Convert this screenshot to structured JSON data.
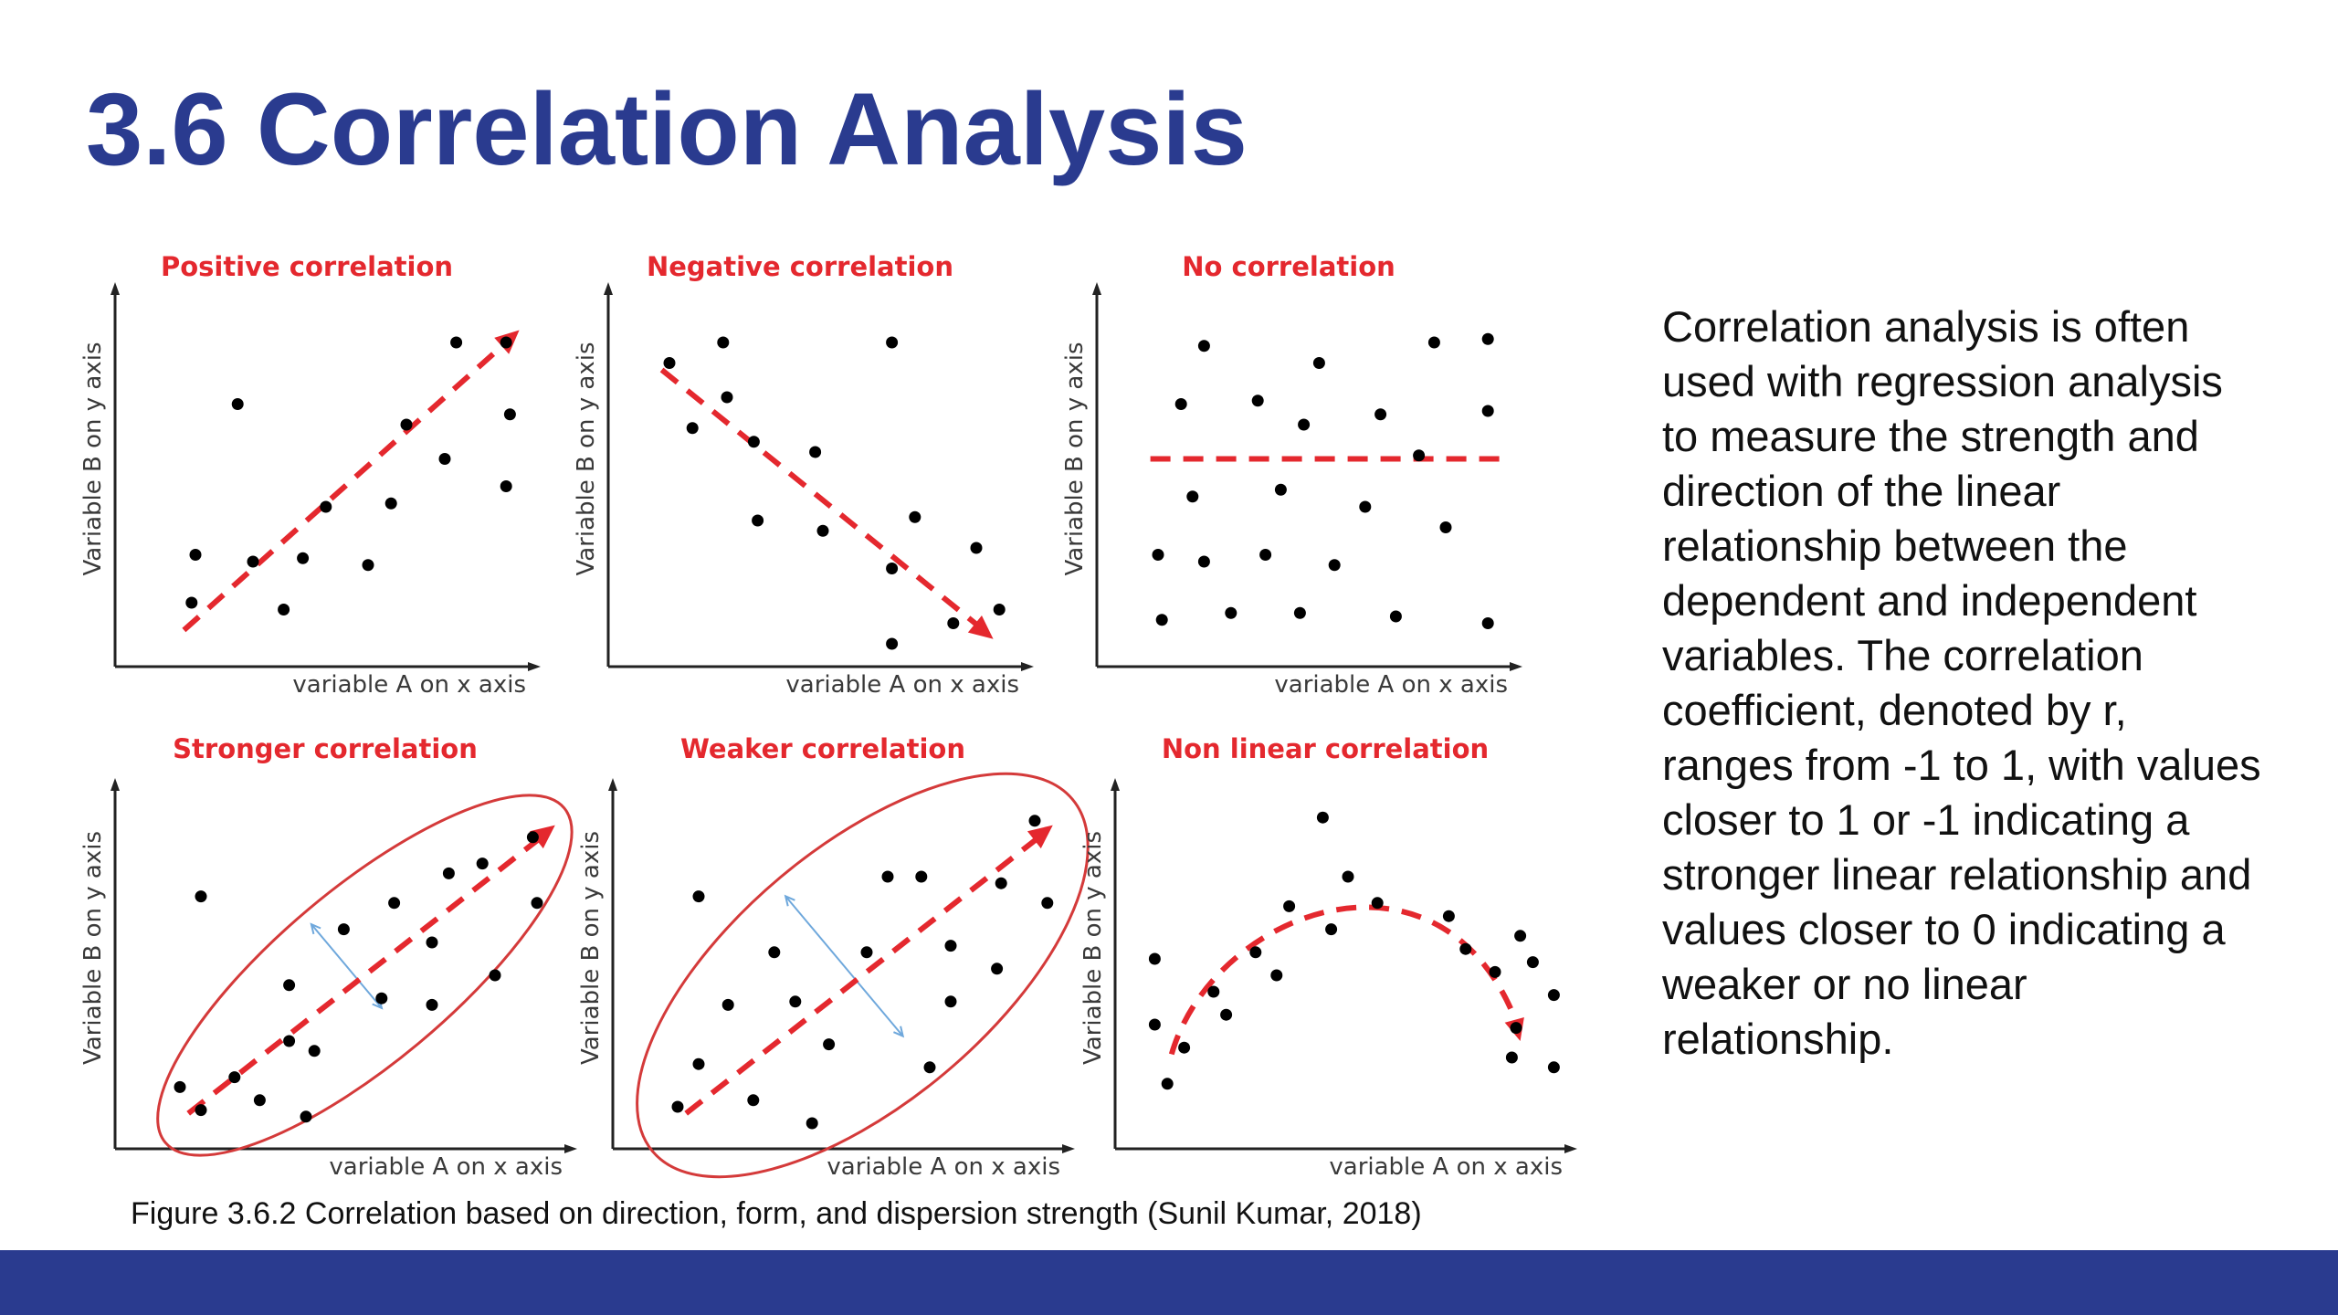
{
  "slide": {
    "title": "3.6 Correlation Analysis",
    "body_text": "Correlation analysis is often used with regression analysis to measure the strength and direction of the linear relationship between the dependent and independent variables. The correlation coefficient, denoted by r, ranges from -1 to 1, with values closer to 1 or -1 indicating a stronger linear relationship and values closer to 0 indicating a weaker or no linear relationship.",
    "caption": "Figure 3.6.2 Correlation based on direction, form, and dispersion strength (Sunil Kumar, 2018)"
  },
  "colors": {
    "title": "#2a3b8f",
    "footer_bar": "#2a3b8f",
    "panel_title": "#e4282e",
    "trend_arrow": "#e4282e",
    "ellipse": "#d43a3a",
    "spread_arrow": "#6fa8dc",
    "points": "#000000",
    "axes": "#222222"
  },
  "figure": {
    "panels": [
      {
        "id": "positive",
        "title": "Positive correlation",
        "xlabel": "variable A on x axis",
        "ylabel": "Variable B on y axis",
        "trend": "increasing dashed arrow",
        "ellipse": false,
        "points": [
          [
            0.14,
            0.84
          ],
          [
            0.26,
            0.26
          ],
          [
            0.15,
            0.7
          ],
          [
            0.3,
            0.72
          ],
          [
            0.38,
            0.86
          ],
          [
            0.43,
            0.71
          ],
          [
            0.49,
            0.56
          ],
          [
            0.6,
            0.73
          ],
          [
            0.66,
            0.55
          ],
          [
            0.7,
            0.32
          ],
          [
            0.8,
            0.42
          ],
          [
            0.83,
            0.08
          ],
          [
            0.96,
            0.08
          ],
          [
            0.97,
            0.29
          ],
          [
            0.96,
            0.5
          ]
        ]
      },
      {
        "id": "negative",
        "title": "Negative correlation",
        "xlabel": "variable A on x axis",
        "ylabel": "Variable B on y axis",
        "trend": "decreasing dashed arrow",
        "ellipse": false,
        "points": [
          [
            0.1,
            0.14
          ],
          [
            0.16,
            0.33
          ],
          [
            0.24,
            0.08
          ],
          [
            0.25,
            0.24
          ],
          [
            0.32,
            0.37
          ],
          [
            0.33,
            0.6
          ],
          [
            0.48,
            0.4
          ],
          [
            0.5,
            0.63
          ],
          [
            0.68,
            0.08
          ],
          [
            0.68,
            0.74
          ],
          [
            0.74,
            0.59
          ],
          [
            0.68,
            0.96
          ],
          [
            0.84,
            0.9
          ],
          [
            0.9,
            0.68
          ],
          [
            0.96,
            0.86
          ]
        ]
      },
      {
        "id": "none",
        "title": "No correlation",
        "xlabel": "variable A on x axis",
        "ylabel": "Variable B on y axis",
        "trend": "flat dashed line",
        "ellipse": false,
        "points": [
          [
            0.22,
            0.09
          ],
          [
            0.16,
            0.26
          ],
          [
            0.36,
            0.25
          ],
          [
            0.52,
            0.14
          ],
          [
            0.68,
            0.29
          ],
          [
            0.82,
            0.08
          ],
          [
            0.96,
            0.07
          ],
          [
            0.96,
            0.28
          ],
          [
            0.48,
            0.32
          ],
          [
            0.78,
            0.41
          ],
          [
            0.19,
            0.53
          ],
          [
            0.42,
            0.51
          ],
          [
            0.64,
            0.56
          ],
          [
            0.85,
            0.62
          ],
          [
            0.1,
            0.7
          ],
          [
            0.22,
            0.72
          ],
          [
            0.38,
            0.7
          ],
          [
            0.56,
            0.73
          ],
          [
            0.11,
            0.89
          ],
          [
            0.29,
            0.87
          ],
          [
            0.47,
            0.87
          ],
          [
            0.72,
            0.88
          ],
          [
            0.96,
            0.9
          ]
        ]
      },
      {
        "id": "stronger",
        "title": "Stronger correlation",
        "xlabel": "variable A on x axis",
        "ylabel": "Variable B on y axis",
        "trend": "increasing dashed arrow",
        "ellipse": true,
        "points": [
          [
            0.15,
            0.26
          ],
          [
            0.1,
            0.84
          ],
          [
            0.15,
            0.91
          ],
          [
            0.23,
            0.81
          ],
          [
            0.29,
            0.88
          ],
          [
            0.36,
            0.7
          ],
          [
            0.36,
            0.53
          ],
          [
            0.42,
            0.73
          ],
          [
            0.4,
            0.93
          ],
          [
            0.49,
            0.36
          ],
          [
            0.61,
            0.28
          ],
          [
            0.58,
            0.57
          ],
          [
            0.7,
            0.4
          ],
          [
            0.7,
            0.59
          ],
          [
            0.74,
            0.19
          ],
          [
            0.82,
            0.16
          ],
          [
            0.85,
            0.5
          ],
          [
            0.94,
            0.08
          ],
          [
            0.95,
            0.28
          ]
        ]
      },
      {
        "id": "weaker",
        "title": "Weaker correlation",
        "xlabel": "variable A on x axis",
        "ylabel": "Variable B on y axis",
        "trend": "increasing dashed arrow",
        "ellipse": true,
        "points": [
          [
            0.15,
            0.26
          ],
          [
            0.15,
            0.77
          ],
          [
            0.1,
            0.9
          ],
          [
            0.22,
            0.59
          ],
          [
            0.28,
            0.88
          ],
          [
            0.33,
            0.43
          ],
          [
            0.38,
            0.58
          ],
          [
            0.42,
            0.95
          ],
          [
            0.46,
            0.71
          ],
          [
            0.55,
            0.43
          ],
          [
            0.6,
            0.2
          ],
          [
            0.68,
            0.2
          ],
          [
            0.75,
            0.41
          ],
          [
            0.75,
            0.58
          ],
          [
            0.7,
            0.78
          ],
          [
            0.86,
            0.48
          ],
          [
            0.87,
            0.22
          ],
          [
            0.95,
            0.03
          ],
          [
            0.98,
            0.28
          ]
        ]
      },
      {
        "id": "nonlinear",
        "title": "Non linear correlation",
        "xlabel": "variable A on x axis",
        "ylabel": "Variable B on y axis",
        "trend": "dashed curve (inverted U)",
        "ellipse": false,
        "points": [
          [
            0.04,
            0.45
          ],
          [
            0.04,
            0.65
          ],
          [
            0.07,
            0.83
          ],
          [
            0.11,
            0.72
          ],
          [
            0.18,
            0.55
          ],
          [
            0.21,
            0.62
          ],
          [
            0.28,
            0.43
          ],
          [
            0.33,
            0.5
          ],
          [
            0.36,
            0.29
          ],
          [
            0.44,
            0.02
          ],
          [
            0.46,
            0.36
          ],
          [
            0.5,
            0.2
          ],
          [
            0.57,
            0.28
          ],
          [
            0.74,
            0.32
          ],
          [
            0.78,
            0.42
          ],
          [
            0.85,
            0.49
          ],
          [
            0.9,
            0.66
          ],
          [
            0.91,
            0.38
          ],
          [
            0.94,
            0.46
          ],
          [
            0.99,
            0.56
          ],
          [
            0.99,
            0.78
          ],
          [
            0.89,
            0.75
          ]
        ]
      }
    ]
  }
}
